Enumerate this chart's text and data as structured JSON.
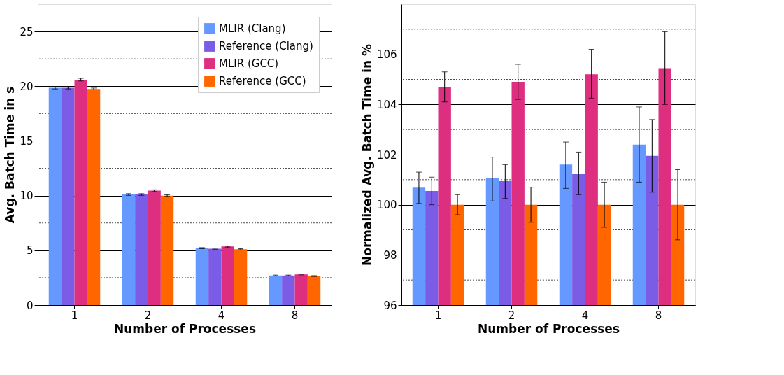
{
  "chart_data": [
    {
      "type": "bar",
      "xlabel": "Number of Processes",
      "ylabel": "Avg. Batch Time in s",
      "categories": [
        "1",
        "2",
        "4",
        "8"
      ],
      "ylim": [
        0,
        27.5
      ],
      "yticks": [
        0,
        5,
        10,
        15,
        20,
        25
      ],
      "grid": "y",
      "legend": "top right",
      "series": [
        {
          "name": "MLIR (Clang)",
          "color": "#6699ff",
          "values": [
            19.85,
            10.1,
            5.2,
            2.7
          ],
          "errors": [
            0.1,
            0.08,
            0.05,
            0.04
          ]
        },
        {
          "name": "Reference (Clang)",
          "color": "#7b5ce6",
          "values": [
            19.85,
            10.1,
            5.15,
            2.7
          ],
          "errors": [
            0.1,
            0.08,
            0.05,
            0.04
          ]
        },
        {
          "name": "MLIR (GCC)",
          "color": "#dd2e80",
          "values": [
            20.6,
            10.45,
            5.35,
            2.8
          ],
          "errors": [
            0.12,
            0.08,
            0.05,
            0.04
          ]
        },
        {
          "name": "Reference (GCC)",
          "color": "#ff6600",
          "values": [
            19.75,
            10.0,
            5.1,
            2.65
          ],
          "errors": [
            0.08,
            0.07,
            0.05,
            0.04
          ]
        }
      ]
    },
    {
      "type": "bar",
      "xlabel": "Number of Processes",
      "ylabel": "Normalized Avg. Batch Time in %",
      "categories": [
        "1",
        "2",
        "4",
        "8"
      ],
      "ylim": [
        96,
        108
      ],
      "yticks": [
        96,
        98,
        100,
        102,
        104,
        106
      ],
      "grid": "y",
      "series": [
        {
          "color": "#6699ff",
          "values": [
            100.68,
            101.05,
            101.6,
            102.4
          ],
          "errors": [
            [
              100.05,
              101.3
            ],
            [
              100.15,
              101.9
            ],
            [
              100.65,
              102.5
            ],
            [
              100.9,
              103.9
            ]
          ]
        },
        {
          "color": "#7b5ce6",
          "values": [
            100.55,
            100.95,
            101.25,
            101.95
          ],
          "errors": [
            [
              100.0,
              101.1
            ],
            [
              100.25,
              101.6
            ],
            [
              100.4,
              102.1
            ],
            [
              100.5,
              103.4
            ]
          ]
        },
        {
          "color": "#dd2e80",
          "values": [
            104.7,
            104.9,
            105.2,
            105.45
          ],
          "errors": [
            [
              104.1,
              105.3
            ],
            [
              104.2,
              105.6
            ],
            [
              104.25,
              106.2
            ],
            [
              104.0,
              106.9
            ]
          ]
        },
        {
          "color": "#ff6600",
          "values": [
            100.0,
            100.0,
            100.0,
            100.0
          ],
          "errors": [
            [
              99.6,
              100.4
            ],
            [
              99.3,
              100.7
            ],
            [
              99.1,
              100.9
            ],
            [
              98.6,
              101.4
            ]
          ]
        }
      ]
    }
  ]
}
